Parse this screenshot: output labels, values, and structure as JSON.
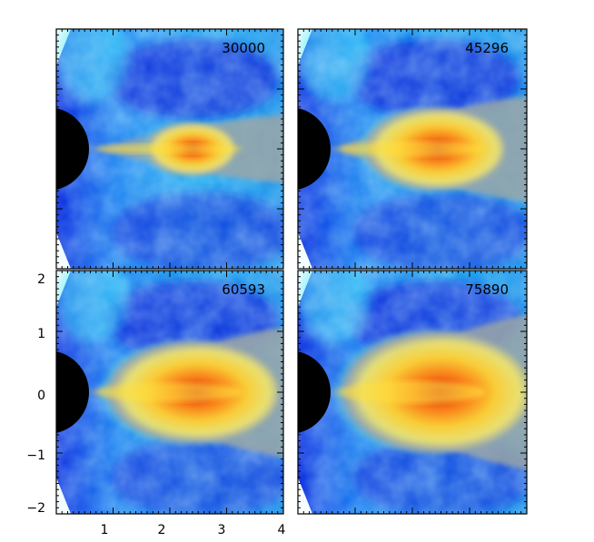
{
  "panels": [
    {
      "label": "30000",
      "intensity": 0.55
    },
    {
      "label": "45296",
      "intensity": 0.85
    },
    {
      "label": "60593",
      "intensity": 1.05
    },
    {
      "label": "75890",
      "intensity": 1.25
    }
  ],
  "axes": {
    "x_ticks": [
      "1",
      "2",
      "3",
      "4"
    ],
    "y_ticks": [
      "2",
      "1",
      "0",
      "−1",
      "−2"
    ]
  },
  "colors": {
    "background_dark": "#0a1fd8",
    "background_mid": "#18a8f0",
    "background_light": "#40e6f8",
    "sheath": "#9aa6a8",
    "jet_core": "#ffe040",
    "jet_hot": "#ff8a10",
    "jet_peak": "#d81a10",
    "black_hole": "#000000"
  }
}
